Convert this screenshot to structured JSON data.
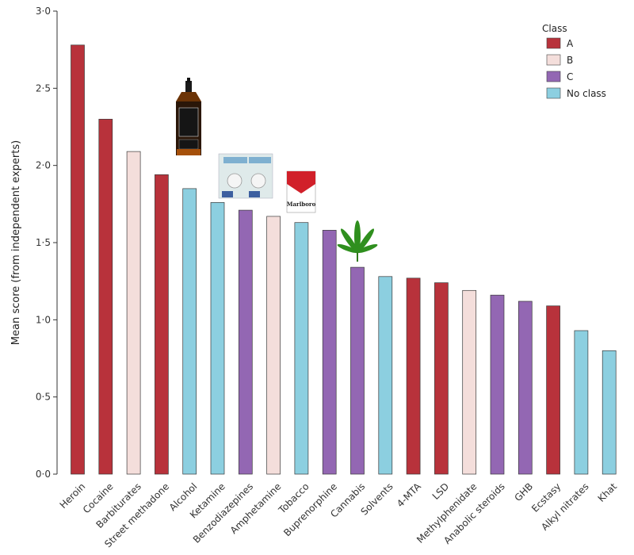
{
  "chart_data": {
    "type": "bar",
    "title": "",
    "xlabel": "",
    "ylabel": "Mean score (from independent experts)",
    "ylim": [
      0,
      3.0
    ],
    "yticks": [
      "0·0",
      "0·5",
      "1·0",
      "1·5",
      "2·0",
      "2·5",
      "3·0"
    ],
    "categories": [
      "Heroin",
      "Cocaine",
      "Barbiturates",
      "Street methadone",
      "Alcohol",
      "Ketamine",
      "Benzodiazepines",
      "Amphetamine",
      "Tobacco",
      "Buprenorphine",
      "Cannabis",
      "Solvents",
      "4-MTA",
      "LSD",
      "Methylphenidate",
      "Anabolic steroids",
      "GHB",
      "Ecstasy",
      "Alkyl nitrates",
      "Khat"
    ],
    "values": [
      2.78,
      2.3,
      2.09,
      1.94,
      1.85,
      1.76,
      1.71,
      1.67,
      1.63,
      1.58,
      1.34,
      1.28,
      1.27,
      1.24,
      1.19,
      1.16,
      1.12,
      1.09,
      0.93,
      0.8
    ],
    "classes": [
      "A",
      "A",
      "B",
      "A",
      "No class",
      "No class",
      "C",
      "B",
      "No class",
      "C",
      "C",
      "No class",
      "A",
      "A",
      "B",
      "C",
      "C",
      "A",
      "No class",
      "No class"
    ],
    "legend": {
      "title": "Class",
      "entries": [
        {
          "label": "A",
          "color": "#b8323b"
        },
        {
          "label": "B",
          "color": "#f4dedb"
        },
        {
          "label": "C",
          "color": "#9367b3"
        },
        {
          "label": "No class",
          "color": "#8ccfe0"
        }
      ]
    },
    "pictograms": {
      "Alcohol": "whisky-bottle",
      "Benzodiazepines": "pill-blister-pack",
      "Tobacco": "cigarette-pack",
      "Cannabis": "cannabis-leaf"
    },
    "cigarette_pack_brand": "Marlboro"
  }
}
